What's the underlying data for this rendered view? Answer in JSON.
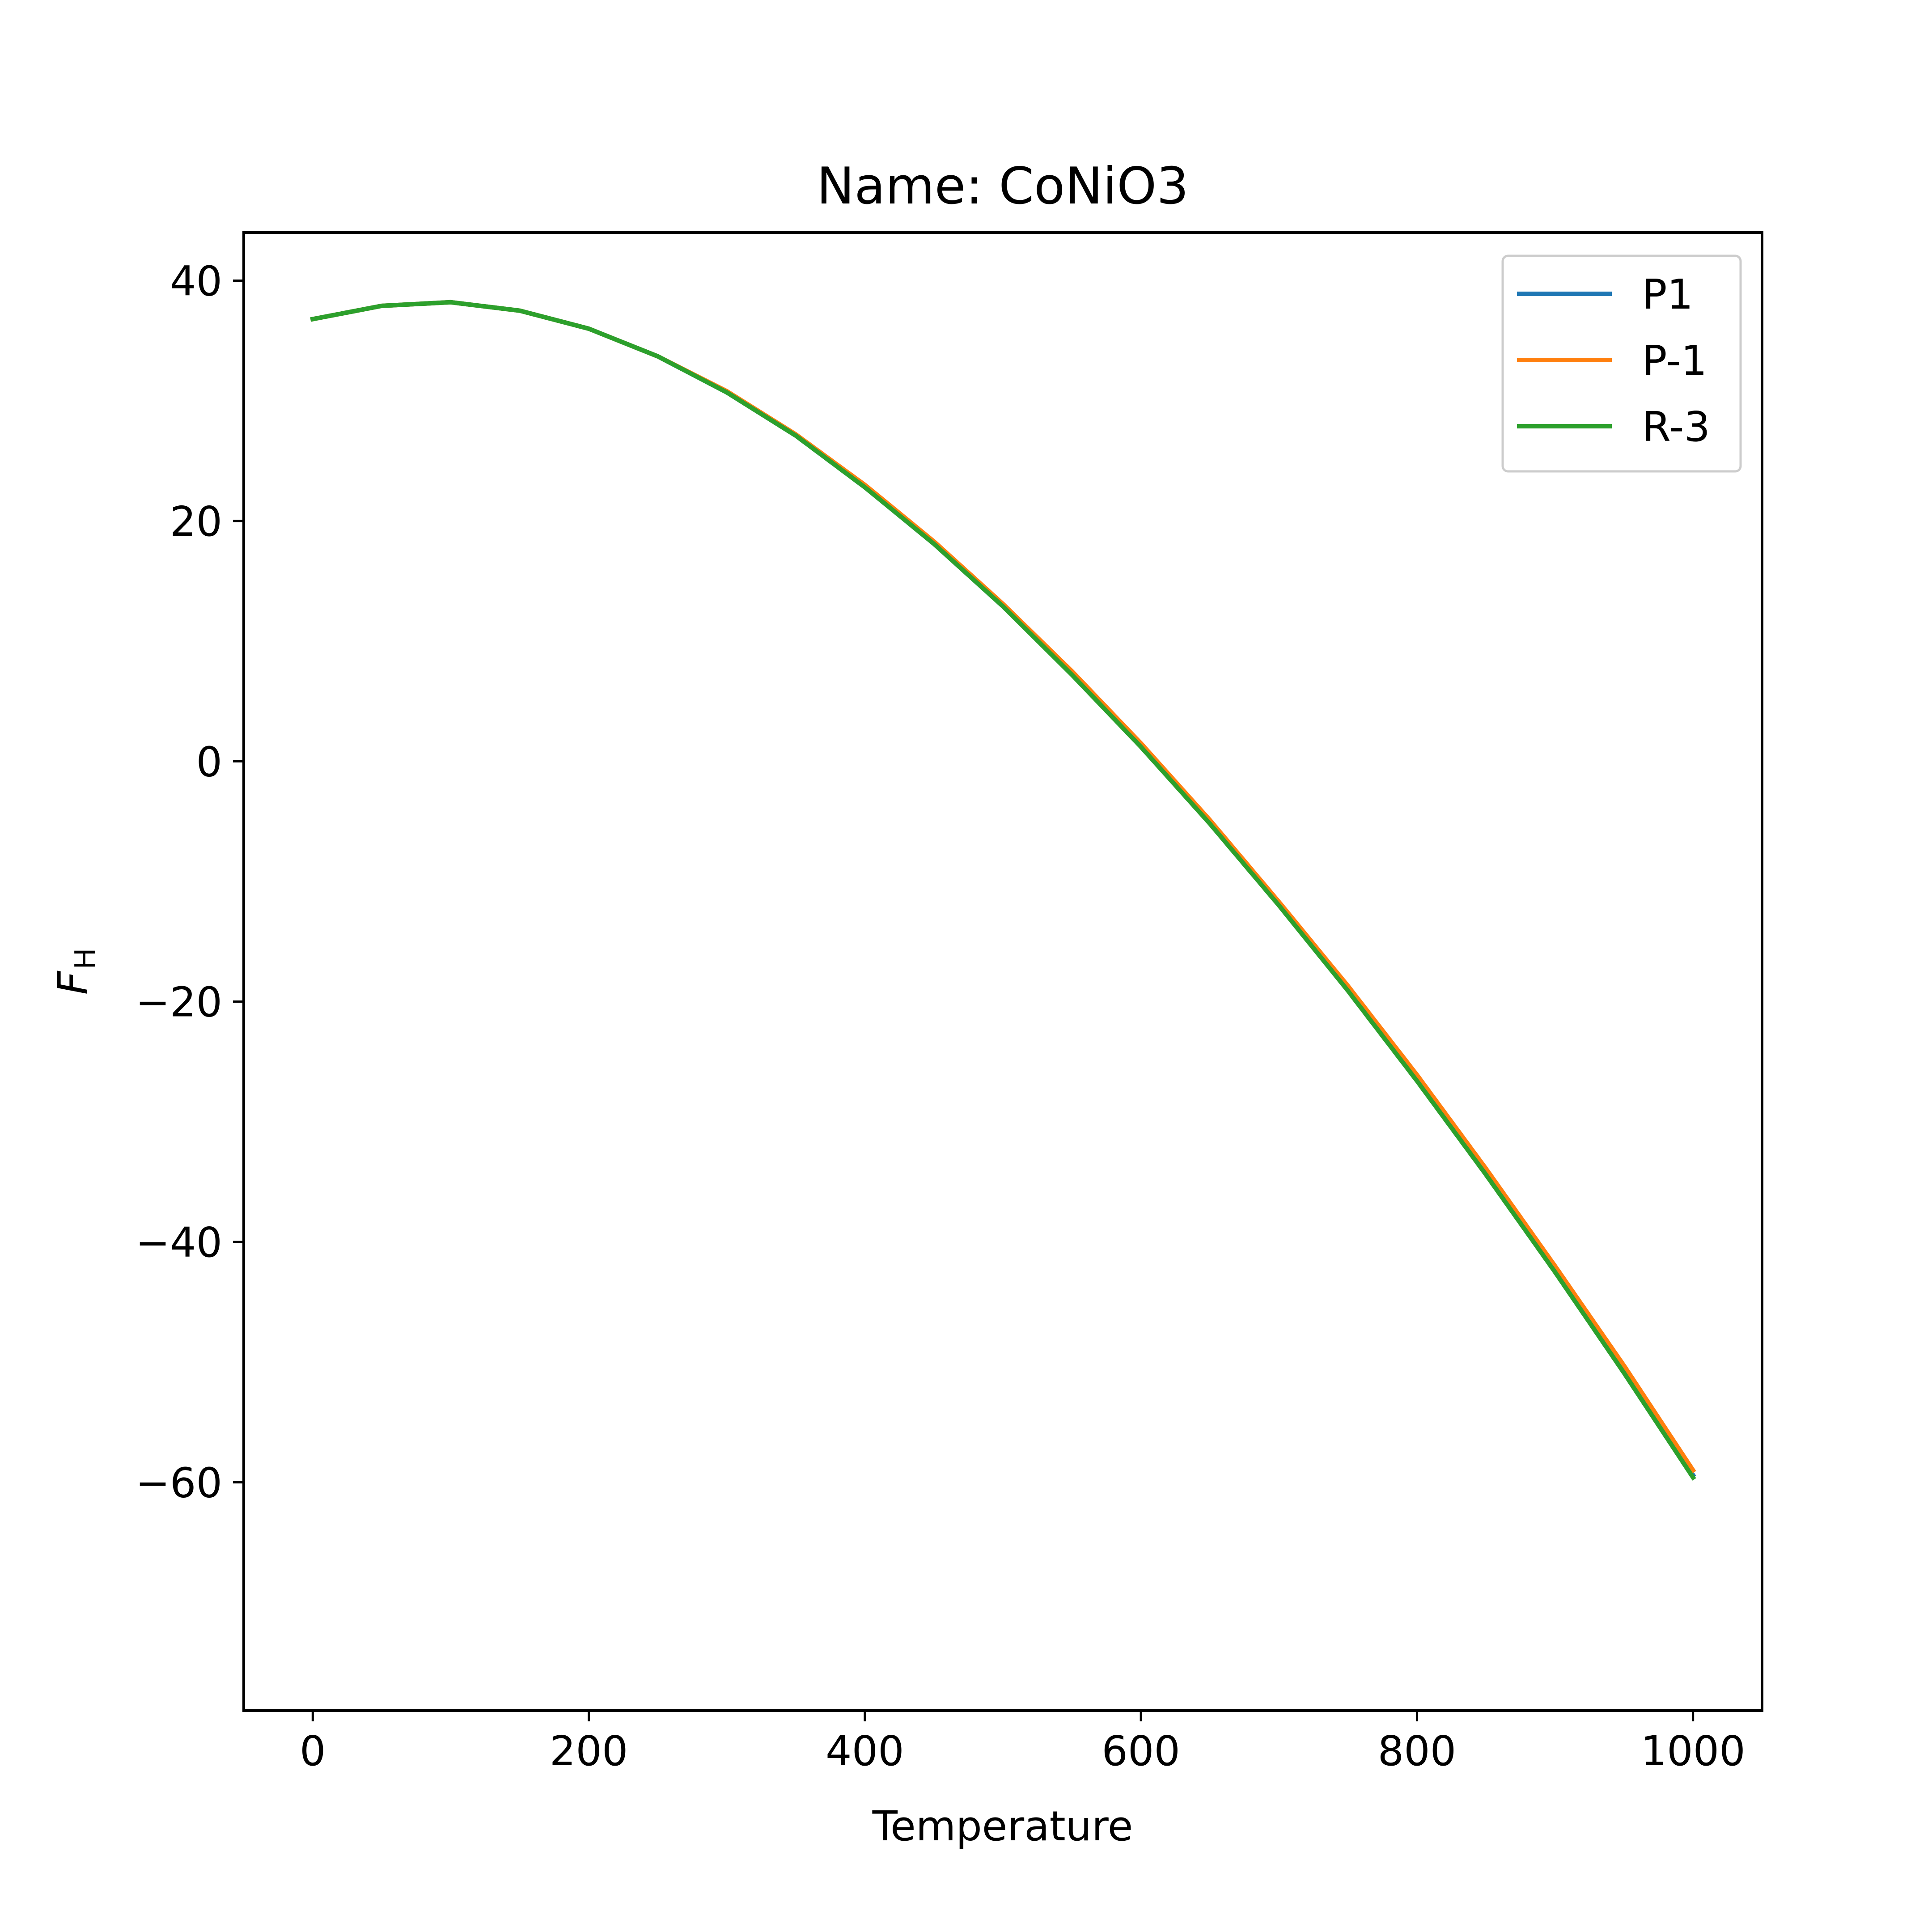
{
  "chart_data": {
    "type": "line",
    "title": "Name: CoNiO3",
    "xlabel": "Temperature",
    "ylabel": "F",
    "ylabel_subscript": "H",
    "xlim": [
      -50,
      1050
    ],
    "ylim": [
      -79,
      44
    ],
    "xticks": [
      0,
      200,
      400,
      600,
      800,
      1000
    ],
    "yticks": [
      -60,
      -40,
      -20,
      0,
      20,
      40
    ],
    "legend_position": "top-right",
    "grid": false,
    "series": [
      {
        "name": "P1",
        "color": "#1f77b4",
        "x": [
          0,
          50,
          100,
          150,
          200,
          250,
          300,
          350,
          400,
          450,
          500,
          550,
          600,
          650,
          700,
          750,
          800,
          850,
          900,
          950,
          1000
        ],
        "y": [
          36.8,
          37.9,
          38.2,
          37.5,
          36.0,
          33.7,
          30.7,
          27.1,
          22.8,
          18.1,
          12.9,
          7.3,
          1.3,
          -5.1,
          -11.9,
          -19.0,
          -26.4,
          -34.2,
          -42.3,
          -50.7,
          -59.4
        ]
      },
      {
        "name": "P-1",
        "color": "#ff7f0e",
        "x": [
          0,
          50,
          100,
          150,
          200,
          250,
          300,
          350,
          400,
          450,
          500,
          550,
          600,
          650,
          700,
          750,
          800,
          850,
          900,
          950,
          1000
        ],
        "y": [
          36.8,
          37.9,
          38.2,
          37.5,
          36.0,
          33.7,
          30.8,
          27.2,
          23.0,
          18.3,
          13.1,
          7.5,
          1.5,
          -4.9,
          -11.7,
          -18.7,
          -26.1,
          -33.9,
          -42.0,
          -50.3,
          -59.0
        ]
      },
      {
        "name": "R-3",
        "color": "#2ca02c",
        "x": [
          0,
          50,
          100,
          150,
          200,
          250,
          300,
          350,
          400,
          450,
          500,
          550,
          600,
          650,
          700,
          750,
          800,
          850,
          900,
          950,
          1000
        ],
        "y": [
          36.8,
          37.9,
          38.2,
          37.5,
          36.0,
          33.7,
          30.7,
          27.1,
          22.8,
          18.1,
          12.9,
          7.2,
          1.2,
          -5.2,
          -12.0,
          -19.1,
          -26.6,
          -34.4,
          -42.5,
          -50.9,
          -59.6
        ]
      }
    ]
  }
}
